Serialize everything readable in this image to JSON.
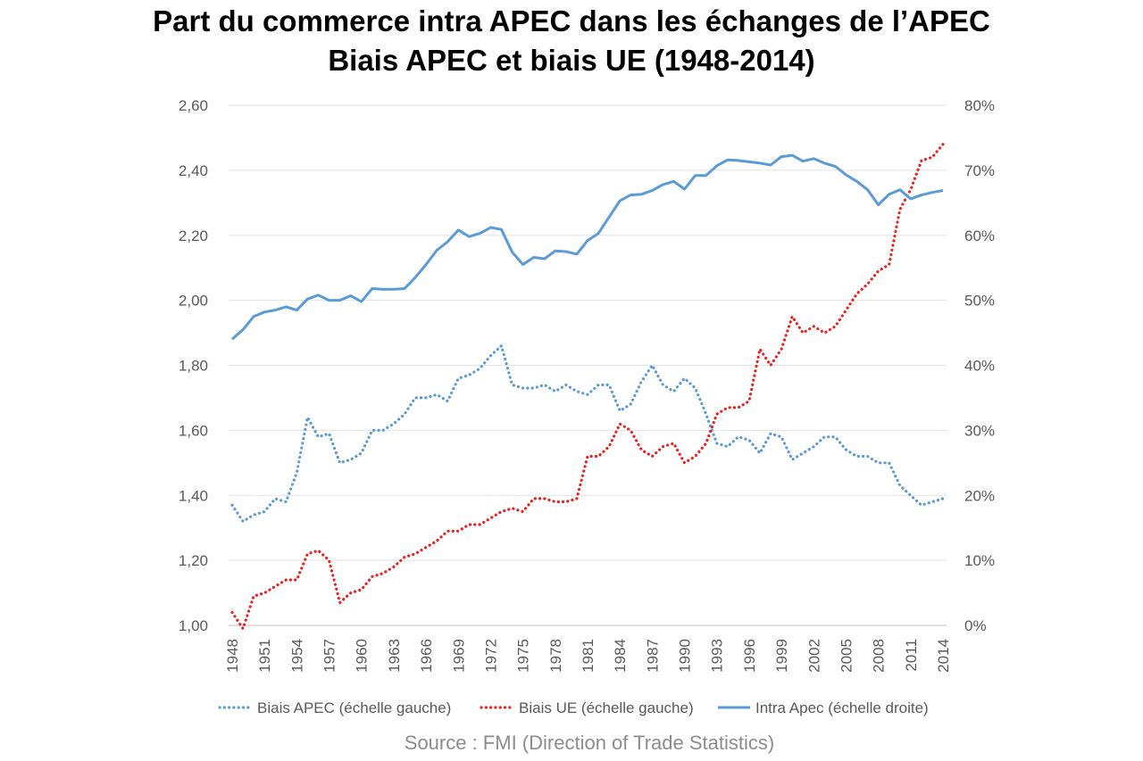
{
  "chart_data": {
    "type": "line",
    "title": [
      "Part du commerce intra APEC dans les échanges de l’APEC",
      "Biais APEC et biais UE (1948-2014)"
    ],
    "source": "Source : FMI (Direction of Trade Statistics)",
    "x": [
      1948,
      1949,
      1950,
      1951,
      1952,
      1953,
      1954,
      1955,
      1956,
      1957,
      1958,
      1959,
      1960,
      1961,
      1962,
      1963,
      1964,
      1965,
      1966,
      1967,
      1968,
      1969,
      1970,
      1971,
      1972,
      1973,
      1974,
      1975,
      1976,
      1977,
      1978,
      1979,
      1980,
      1981,
      1982,
      1983,
      1984,
      1985,
      1986,
      1987,
      1988,
      1989,
      1990,
      1991,
      1992,
      1993,
      1994,
      1995,
      1996,
      1997,
      1998,
      1999,
      2000,
      2001,
      2002,
      2003,
      2004,
      2005,
      2006,
      2007,
      2008,
      2009,
      2010,
      2011,
      2012,
      2013,
      2014
    ],
    "x_tick_labels": [
      "1948",
      "1951",
      "1954",
      "1957",
      "1960",
      "1963",
      "1966",
      "1969",
      "1972",
      "1975",
      "1978",
      "1981",
      "1984",
      "1987",
      "1990",
      "1993",
      "1996",
      "1999",
      "2002",
      "2005",
      "2008",
      "2011",
      "2014"
    ],
    "y_left": {
      "ylim": [
        1.0,
        2.6
      ],
      "ticks": [
        "1,00",
        "1,20",
        "1,40",
        "1,60",
        "1,80",
        "2,00",
        "2,20",
        "2,40",
        "2,60"
      ]
    },
    "y_right": {
      "ylim": [
        0,
        80
      ],
      "ticks": [
        "0%",
        "10%",
        "20%",
        "30%",
        "40%",
        "50%",
        "60%",
        "70%",
        "80%"
      ]
    },
    "grid": true,
    "legend_position": "bottom",
    "series": [
      {
        "name": "Biais APEC (échelle gauche)",
        "axis": "left",
        "style": "dotted",
        "color": "#5b9bd5",
        "values": [
          1.37,
          1.32,
          1.34,
          1.35,
          1.39,
          1.38,
          1.47,
          1.64,
          1.58,
          1.59,
          1.5,
          1.51,
          1.53,
          1.6,
          1.6,
          1.62,
          1.65,
          1.7,
          1.7,
          1.71,
          1.69,
          1.76,
          1.77,
          1.79,
          1.83,
          1.86,
          1.74,
          1.73,
          1.73,
          1.74,
          1.72,
          1.74,
          1.72,
          1.71,
          1.74,
          1.74,
          1.66,
          1.68,
          1.75,
          1.8,
          1.74,
          1.72,
          1.76,
          1.73,
          1.65,
          1.56,
          1.55,
          1.58,
          1.57,
          1.53,
          1.59,
          1.58,
          1.51,
          1.53,
          1.55,
          1.58,
          1.58,
          1.54,
          1.52,
          1.52,
          1.5,
          1.5,
          1.43,
          1.4,
          1.37,
          1.38,
          1.39
        ]
      },
      {
        "name": "Biais UE (échelle gauche)",
        "axis": "left",
        "style": "dotted",
        "color": "#e8221e",
        "values": [
          1.04,
          0.99,
          1.09,
          1.1,
          1.12,
          1.14,
          1.14,
          1.22,
          1.23,
          1.2,
          1.07,
          1.1,
          1.11,
          1.15,
          1.16,
          1.18,
          1.21,
          1.22,
          1.24,
          1.26,
          1.29,
          1.29,
          1.31,
          1.31,
          1.33,
          1.35,
          1.36,
          1.35,
          1.39,
          1.39,
          1.38,
          1.38,
          1.39,
          1.52,
          1.52,
          1.55,
          1.62,
          1.6,
          1.54,
          1.52,
          1.55,
          1.56,
          1.5,
          1.52,
          1.56,
          1.65,
          1.67,
          1.67,
          1.69,
          1.85,
          1.8,
          1.85,
          1.95,
          1.9,
          1.92,
          1.9,
          1.92,
          1.97,
          2.02,
          2.05,
          2.09,
          2.11,
          2.28,
          2.34,
          2.43,
          2.44,
          2.48
        ]
      },
      {
        "name": "Intra Apec (échelle droite)",
        "axis": "right",
        "style": "solid",
        "color": "#5b9bd5",
        "values": [
          44.0,
          45.5,
          47.5,
          48.2,
          48.5,
          49.0,
          48.5,
          50.2,
          50.8,
          50.0,
          50.0,
          50.7,
          49.8,
          51.8,
          51.7,
          51.7,
          51.8,
          53.5,
          55.5,
          57.7,
          59.0,
          60.8,
          59.8,
          60.3,
          61.2,
          60.9,
          57.4,
          55.5,
          56.6,
          56.4,
          57.6,
          57.5,
          57.1,
          59.2,
          60.3,
          62.8,
          65.3,
          66.2,
          66.3,
          66.9,
          67.8,
          68.3,
          67.1,
          69.2,
          69.2,
          70.7,
          71.6,
          71.5,
          71.3,
          71.1,
          70.8,
          72.1,
          72.3,
          71.4,
          71.8,
          71.1,
          70.6,
          69.3,
          68.3,
          67.0,
          64.7,
          66.3,
          67.0,
          65.6,
          66.2,
          66.6,
          66.9
        ]
      }
    ]
  }
}
